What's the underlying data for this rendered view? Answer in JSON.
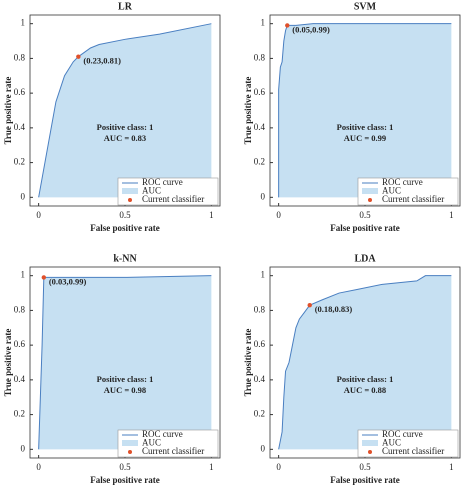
{
  "chart_data": [
    {
      "type": "area",
      "title": "LR",
      "xlabel": "False positive rate",
      "ylabel": "True positive rate",
      "xlim": [
        -0.05,
        1.05
      ],
      "ylim": [
        -0.05,
        1.05
      ],
      "xticks": [
        0,
        0.5,
        1
      ],
      "yticks": [
        0,
        0.2,
        0.4,
        0.6,
        0.8,
        1
      ],
      "series": [
        {
          "name": "ROC curve",
          "color": "#4a7fc1",
          "x": [
            0,
            0.1,
            0.15,
            0.2,
            0.23,
            0.3,
            0.35,
            0.5,
            0.7,
            1
          ],
          "values": [
            0,
            0.55,
            0.7,
            0.78,
            0.81,
            0.86,
            0.88,
            0.91,
            0.94,
            1
          ]
        }
      ],
      "area_name": "AUC",
      "area_color": "#c6e0f2",
      "point": {
        "name": "Current classifier",
        "x": 0.23,
        "y": 0.81,
        "label": "(0.23,0.81)",
        "color": "#e0502a"
      },
      "annotations": [
        "Positive class: 1",
        "AUC = 0.83"
      ]
    },
    {
      "type": "area",
      "title": "SVM",
      "xlabel": "False positive rate",
      "ylabel": "True positive rate",
      "xlim": [
        -0.05,
        1.05
      ],
      "ylim": [
        -0.05,
        1.05
      ],
      "xticks": [
        0,
        0.5,
        1
      ],
      "yticks": [
        0,
        0.2,
        0.4,
        0.6,
        0.8,
        1
      ],
      "series": [
        {
          "name": "ROC curve",
          "color": "#4a7fc1",
          "x": [
            0,
            0,
            0.01,
            0.02,
            0.03,
            0.04,
            0.05,
            0.1,
            0.2,
            1
          ],
          "values": [
            0,
            0.62,
            0.75,
            0.78,
            0.9,
            0.96,
            0.99,
            0.99,
            1,
            1
          ]
        }
      ],
      "area_name": "AUC",
      "area_color": "#c6e0f2",
      "point": {
        "name": "Current classifier",
        "x": 0.05,
        "y": 0.99,
        "label": "(0.05,0.99)",
        "color": "#e0502a"
      },
      "annotations": [
        "Positive class: 1",
        "AUC = 0.99"
      ]
    },
    {
      "type": "area",
      "title": "k-NN",
      "xlabel": "False positive rate",
      "ylabel": "True positive rate",
      "xlim": [
        -0.05,
        1.05
      ],
      "ylim": [
        -0.05,
        1.05
      ],
      "xticks": [
        0,
        0.5,
        1
      ],
      "yticks": [
        0,
        0.2,
        0.4,
        0.6,
        0.8,
        1
      ],
      "series": [
        {
          "name": "ROC curve",
          "color": "#4a7fc1",
          "x": [
            0,
            0.02,
            0.03,
            0.5,
            1
          ],
          "values": [
            0,
            0.6,
            0.99,
            0.99,
            1
          ]
        }
      ],
      "area_name": "AUC",
      "area_color": "#c6e0f2",
      "point": {
        "name": "Current classifier",
        "x": 0.03,
        "y": 0.99,
        "label": "(0.03,0.99)",
        "color": "#e0502a"
      },
      "annotations": [
        "Positive class: 1",
        "AUC = 0.98"
      ]
    },
    {
      "type": "area",
      "title": "LDA",
      "xlabel": "False positive rate",
      "ylabel": "True positive rate",
      "xlim": [
        -0.05,
        1.05
      ],
      "ylim": [
        -0.05,
        1.05
      ],
      "xticks": [
        0,
        0.5,
        1
      ],
      "yticks": [
        0,
        0.2,
        0.4,
        0.6,
        0.8,
        1
      ],
      "series": [
        {
          "name": "ROC curve",
          "color": "#4a7fc1",
          "x": [
            0,
            0.02,
            0.03,
            0.04,
            0.06,
            0.08,
            0.1,
            0.12,
            0.15,
            0.18,
            0.25,
            0.35,
            0.45,
            0.6,
            0.8,
            0.85,
            1
          ],
          "values": [
            0,
            0.1,
            0.3,
            0.45,
            0.5,
            0.6,
            0.7,
            0.75,
            0.79,
            0.83,
            0.86,
            0.9,
            0.92,
            0.95,
            0.97,
            1,
            1
          ]
        }
      ],
      "area_name": "AUC",
      "area_color": "#c6e0f2",
      "point": {
        "name": "Current classifier",
        "x": 0.18,
        "y": 0.83,
        "label": "(0.18,0.83)",
        "color": "#e0502a"
      },
      "annotations": [
        "Positive class: 1",
        "AUC = 0.88"
      ]
    }
  ]
}
